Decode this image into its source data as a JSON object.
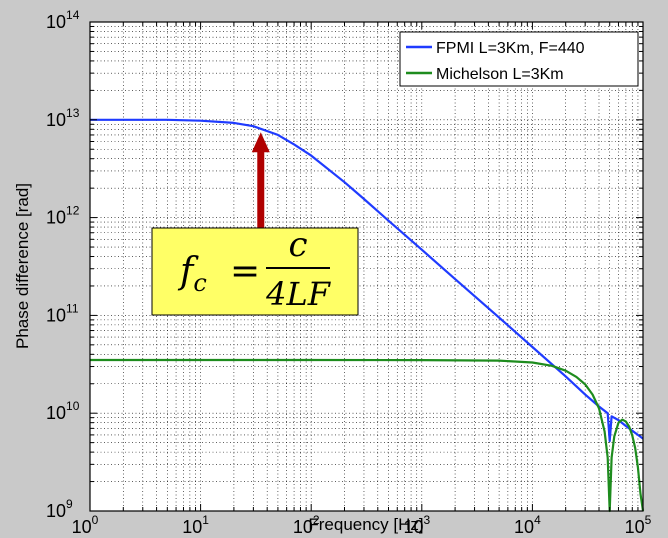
{
  "chart_data": {
    "type": "line",
    "xscale": "log",
    "yscale": "log",
    "xlim": [
      1,
      100000
    ],
    "ylim": [
      1000000000,
      100000000000000
    ],
    "xlabel": "Frequency [Hz]",
    "ylabel": "Phase difference [rad]",
    "grid": true,
    "legend_position": "top-right",
    "x_tick_labels": [
      {
        "base": "10",
        "exp": "0"
      },
      {
        "base": "10",
        "exp": "1"
      },
      {
        "base": "10",
        "exp": "2"
      },
      {
        "base": "10",
        "exp": "3"
      },
      {
        "base": "10",
        "exp": "4"
      },
      {
        "base": "10",
        "exp": "5"
      }
    ],
    "y_tick_labels": [
      {
        "base": "10",
        "exp": "9"
      },
      {
        "base": "10",
        "exp": "10"
      },
      {
        "base": "10",
        "exp": "11"
      },
      {
        "base": "10",
        "exp": "12"
      },
      {
        "base": "10",
        "exp": "13"
      },
      {
        "base": "10",
        "exp": "14"
      }
    ],
    "series": [
      {
        "name": "FPMI L=3Km, F=440",
        "color": "#1f3bff",
        "x": [
          1,
          2,
          5,
          10,
          20,
          30,
          50,
          70,
          100,
          200,
          300,
          500,
          1000,
          2000,
          5000,
          10000,
          20000,
          30000,
          40000,
          48000,
          50000,
          52000,
          60000,
          70000,
          80000,
          90000,
          100000
        ],
        "y": [
          10000000000000.0,
          10000000000000.0,
          10000000000000.0,
          9800000000000.0,
          9300000000000.0,
          8600000000000.0,
          7000000000000.0,
          5600000000000.0,
          4300000000000.0,
          2300000000000.0,
          1550000000000.0,
          930000000000.0,
          470000000000.0,
          235000000000.0,
          95000000000.0,
          47500000000.0,
          23800000000.0,
          15500000000.0,
          11700000000.0,
          10000000000.0,
          5200000000.0,
          9300000000.0,
          8500000000.0,
          7400000000.0,
          6600000000.0,
          6000000000.0,
          5500000000.0
        ]
      },
      {
        "name": "Michelson L=3Km",
        "color": "#1e8c1e",
        "x": [
          1,
          10,
          100,
          1000,
          5000,
          10000,
          15000,
          20000,
          25000,
          30000,
          35000,
          40000,
          45000,
          48000,
          50000,
          52000,
          55000,
          60000,
          65000,
          70000,
          75000,
          80000,
          85000,
          90000,
          95000,
          100000
        ],
        "y": [
          35000000000.0,
          35000000000.0,
          35000000000.0,
          34900000000.0,
          34500000000.0,
          33000000000.0,
          30500000000.0,
          27200000000.0,
          23500000000.0,
          19700000000.0,
          15500000000.0,
          11200000000.0,
          6500000000.0,
          3500000000.0,
          1000000000.0,
          3500000000.0,
          5800000000.0,
          8000000000.0,
          8600000000.0,
          8200000000.0,
          7300000000.0,
          5900000000.0,
          4400000000.0,
          2800000000.0,
          1500000000.0,
          1000000000.0
        ]
      }
    ],
    "annotation": {
      "arrow_x": 35,
      "arrow_y_from": 1000000000000.0,
      "arrow_y_to": 8600000000000.0,
      "arrow_color": "#b00000",
      "box_fill": "#ffff66",
      "formula": {
        "lhs": "f",
        "lhs_sub": "c",
        "equals": "=",
        "numerator": "c",
        "denominator": "4LF"
      }
    }
  }
}
